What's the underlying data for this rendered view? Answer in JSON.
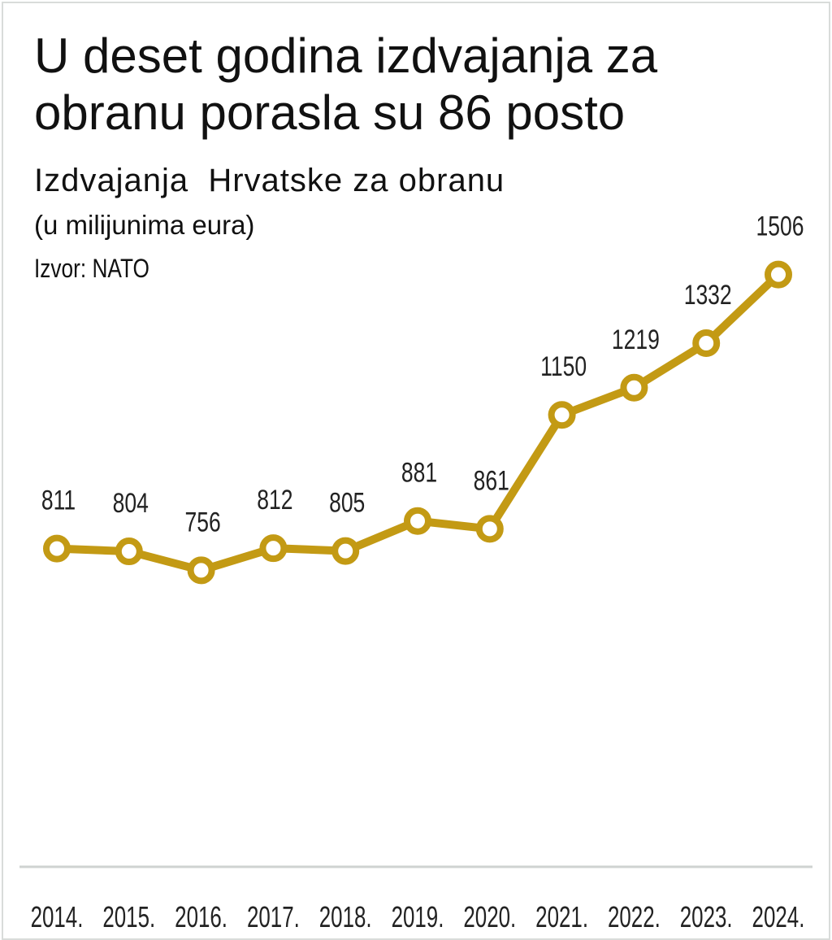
{
  "chart_data": {
    "type": "line",
    "title": "U deset godina izdvajanja za obranu porasla su 86 posto",
    "subtitle": "Izdvajanja  Hrvatske za obranu",
    "unit_note": "(u milijunima eura)",
    "source": "Izvor: NATO",
    "categories": [
      "2014.",
      "2015.",
      "2016.",
      "2017.",
      "2018.",
      "2019.",
      "2020.",
      "2021.",
      "2022.",
      "2023.",
      "2024."
    ],
    "values": [
      811,
      804,
      756,
      812,
      805,
      881,
      861,
      1150,
      1219,
      1332,
      1506
    ],
    "color": "#c39a14"
  }
}
